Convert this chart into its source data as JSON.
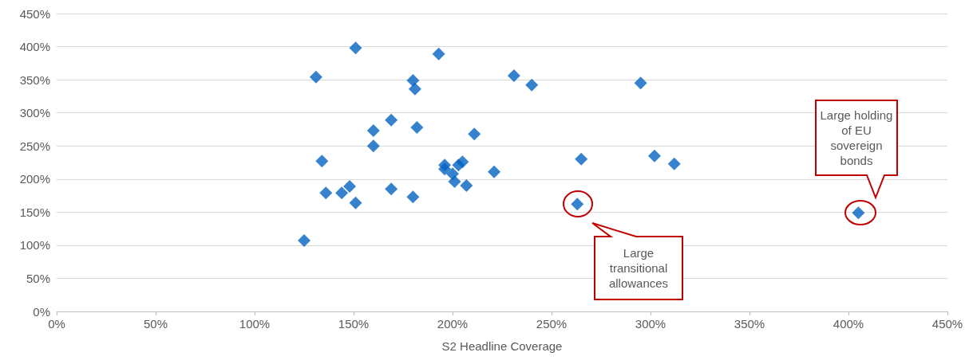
{
  "chart_data": {
    "type": "scatter",
    "xlabel": "S2 Headline Coverage",
    "marker": "diamond",
    "grid": "y",
    "x": [
      125,
      131,
      134,
      136,
      144,
      148,
      151,
      151,
      160,
      160,
      169,
      169,
      180,
      181,
      180,
      182,
      193,
      196,
      196,
      200,
      201,
      203,
      205,
      207,
      211,
      221,
      231,
      240,
      263,
      265,
      295,
      302,
      312,
      405
    ],
    "series": [
      {
        "color": "#0563c1",
        "values": [
          107,
          354,
          227,
          179,
          179,
          189,
          398,
          164,
          273,
          250,
          289,
          185,
          349,
          336,
          173,
          278,
          389,
          221,
          215,
          208,
          196,
          221,
          226,
          190,
          268,
          211,
          356,
          342,
          162,
          230,
          345,
          235,
          223,
          149
        ]
      }
    ],
    "xlim": [
      0,
      450
    ],
    "ylim": [
      0,
      450
    ],
    "xticks": [
      {
        "value": 0,
        "label": "0%"
      },
      {
        "value": 50,
        "label": "50%"
      },
      {
        "value": 100,
        "label": "100%"
      },
      {
        "value": 150,
        "label": "150%"
      },
      {
        "value": 200,
        "label": "200%"
      },
      {
        "value": 250,
        "label": "250%"
      },
      {
        "value": 300,
        "label": "300%"
      },
      {
        "value": 350,
        "label": "350%"
      },
      {
        "value": 400,
        "label": "400%"
      },
      {
        "value": 450,
        "label": "450%"
      }
    ],
    "yticks": [
      {
        "value": 0,
        "label": "0%"
      },
      {
        "value": 50,
        "label": "50%"
      },
      {
        "value": 100,
        "label": "100%"
      },
      {
        "value": 150,
        "label": "150%"
      },
      {
        "value": 200,
        "label": "200%"
      },
      {
        "value": 250,
        "label": "250%"
      },
      {
        "value": 300,
        "label": "300%"
      },
      {
        "value": 350,
        "label": "350%"
      },
      {
        "value": 400,
        "label": "400%"
      },
      {
        "value": 450,
        "label": "450%"
      }
    ],
    "annotations": [
      "Large\ntransitional\nallowances",
      "Large holding\nof EU\nsovereign\nbonds"
    ]
  }
}
